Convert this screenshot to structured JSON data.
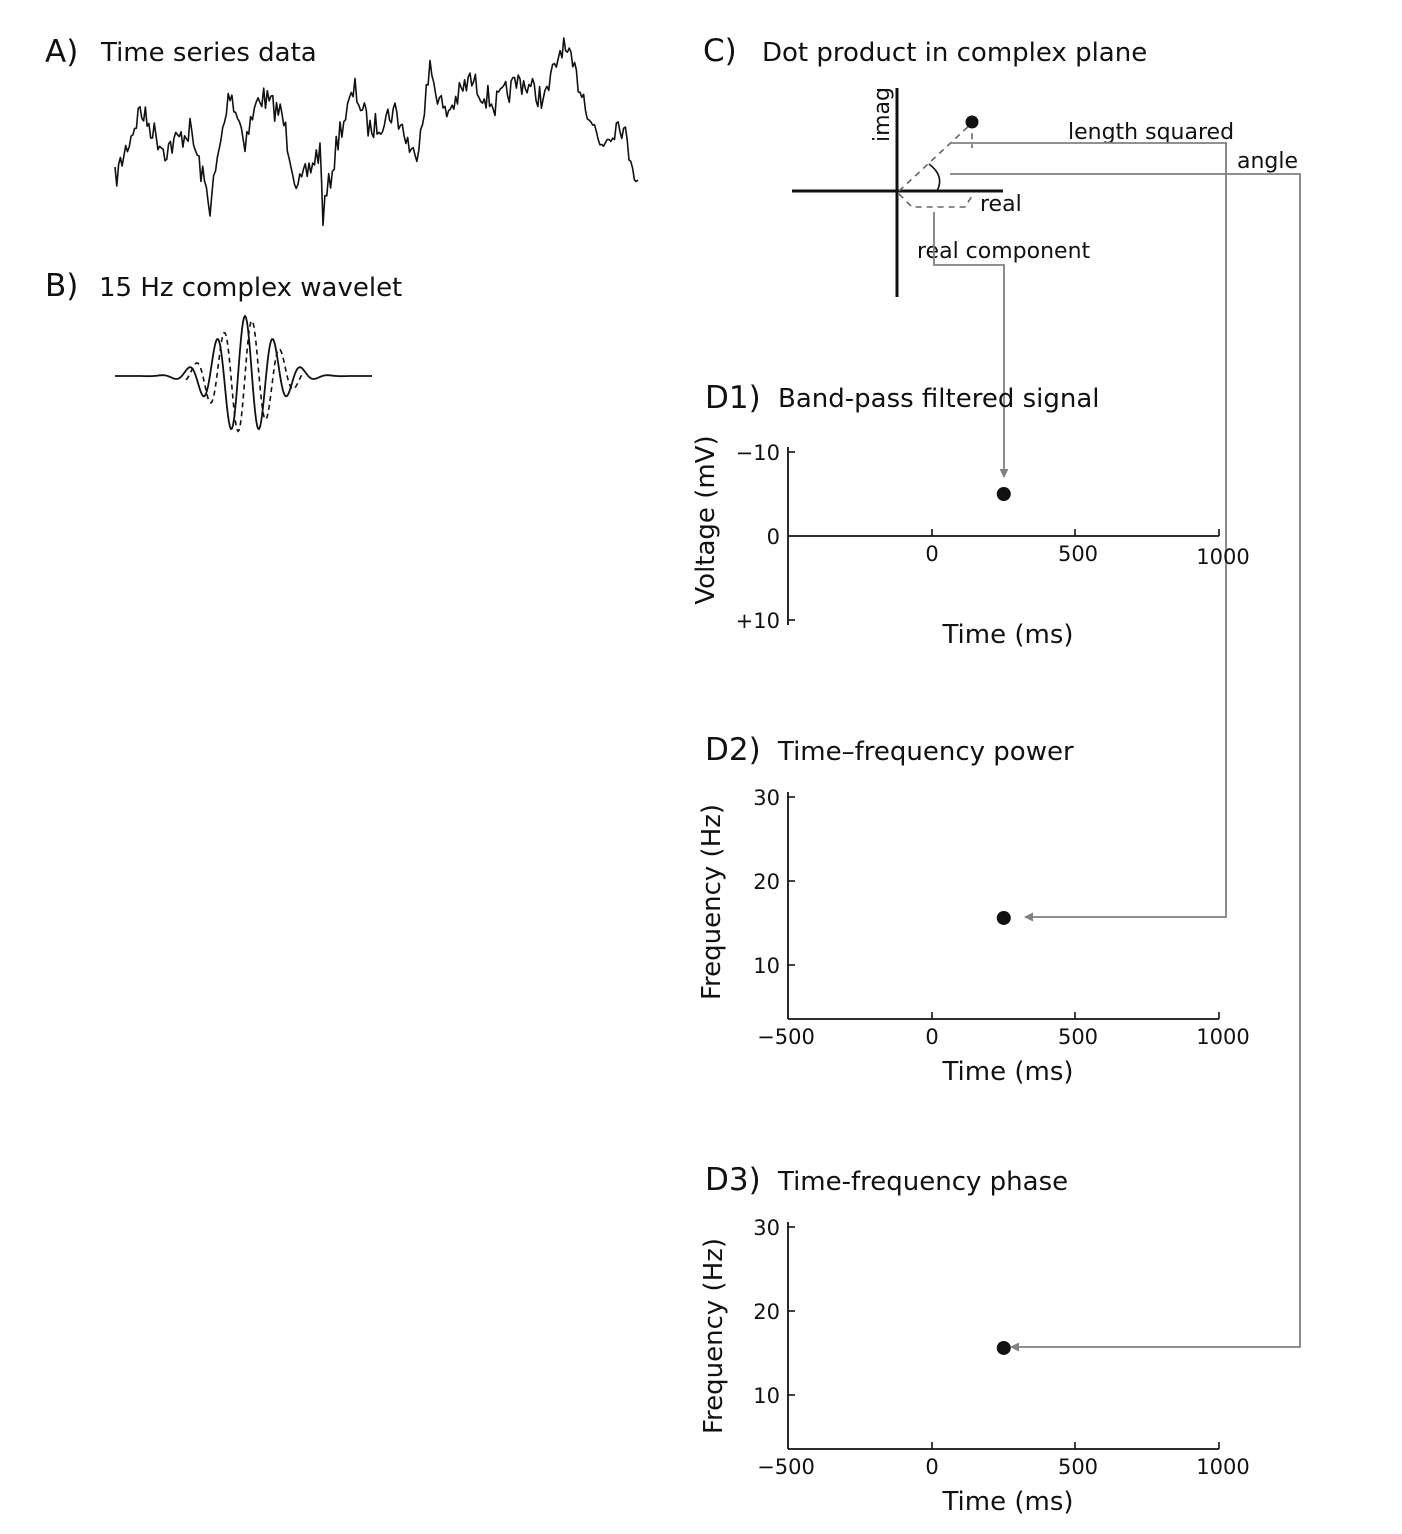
{
  "panels": {
    "a": {
      "letter": "A)",
      "title": "Time series data"
    },
    "b": {
      "letter": "B)",
      "title": "15 Hz complex wavelet"
    },
    "c": {
      "letter": "C)",
      "title": "Dot product in complex plane",
      "axis_imag": "imag",
      "axis_real": "real",
      "length_squared": "length squared",
      "angle": "angle",
      "real_component": "real component"
    },
    "d1": {
      "letter": "D1)",
      "title": "Band-pass filtered signal",
      "ylabel": "Voltage (mV)",
      "xlabel": "Time (ms)",
      "yticks": [
        "−10",
        "0",
        "+10"
      ],
      "xticks": [
        "0",
        "500",
        "1000"
      ]
    },
    "d2": {
      "letter": "D2)",
      "title": "Time–frequency power",
      "ylabel": "Frequency (Hz)",
      "xlabel": "Time (ms)",
      "yticks": [
        "30",
        "20",
        "10"
      ],
      "xticks": [
        "−500",
        "0",
        "500",
        "1000"
      ]
    },
    "d3": {
      "letter": "D3)",
      "title": "Time-frequency phase",
      "ylabel": "Frequency (Hz)",
      "xlabel": "Time (ms)",
      "yticks": [
        "30",
        "20",
        "10"
      ],
      "xticks": [
        "−500",
        "0",
        "500",
        "1000"
      ]
    }
  },
  "points": {
    "d1": {
      "time_ms": 250,
      "voltage_mv": -5
    },
    "d2": {
      "time_ms": 250,
      "frequency_hz": 15.6
    },
    "d3": {
      "time_ms": 250,
      "frequency_hz": 15.6
    }
  },
  "colors": {
    "ink": "#111111",
    "arrow": "#808080",
    "dash": "#666666"
  }
}
